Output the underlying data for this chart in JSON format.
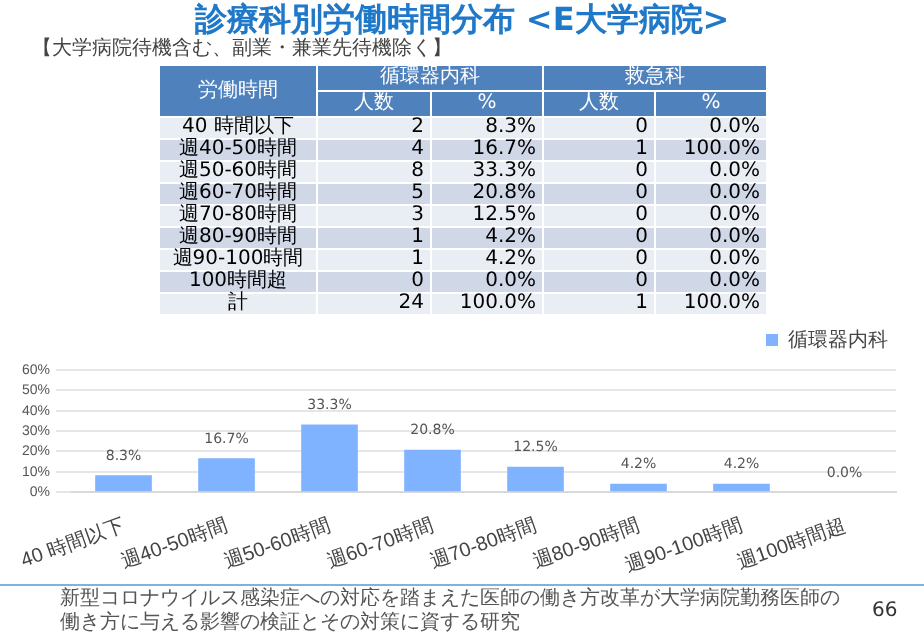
{
  "chart_data": [
    {
      "type": "heatmap",
      "title": "診療科別労働時間分布 <E大学病院>",
      "subtitle": "【大学病院待機含む、副業・兼業先待機除く】",
      "ylabel": "労働時間",
      "annotations": [
        "循環器内科",
        "救急科"
      ],
      "categories": [
        "人数",
        "%",
        "人数",
        "%"
      ],
      "y_categories": [
        "40 時間以下",
        "週40-50時間",
        "週50-60時間",
        "週60-70時間",
        "週70-80時間",
        "週80-90時間",
        "週90-100時間",
        "100時間超",
        "計"
      ],
      "cells": [
        [
          2,
          8.3,
          0,
          0
        ],
        [
          4,
          16.7,
          1,
          100
        ],
        [
          8,
          33.3,
          0,
          0
        ],
        [
          5,
          20.8,
          0,
          0
        ],
        [
          3,
          12.5,
          0,
          0
        ],
        [
          1,
          4.2,
          0,
          0
        ],
        [
          1,
          4.2,
          0,
          0
        ],
        [
          0,
          0,
          0,
          0
        ],
        [
          24,
          100,
          1,
          100
        ]
      ],
      "cell_labels": [
        [
          "2",
          "8.3%",
          "0",
          "0.0%"
        ],
        [
          "4",
          "16.7%",
          "1",
          "100.0%"
        ],
        [
          "8",
          "33.3%",
          "0",
          "0.0%"
        ],
        [
          "5",
          "20.8%",
          "0",
          "0.0%"
        ],
        [
          "3",
          "12.5%",
          "0",
          "0.0%"
        ],
        [
          "1",
          "4.2%",
          "0",
          "0.0%"
        ],
        [
          "1",
          "4.2%",
          "0",
          "0.0%"
        ],
        [
          "0",
          "0.0%",
          "0",
          "0.0%"
        ],
        [
          "24",
          "100.0%",
          "1",
          "100.0%"
        ]
      ]
    },
    {
      "type": "bar",
      "categories": [
        "40 時間以下",
        "週40-50時間",
        "週50-60時間",
        "週60-70時間",
        "週70-80時間",
        "週80-90時間",
        "週90-100時間",
        "週100時間超"
      ],
      "series": [
        {
          "name": "循環器内科",
          "color": "#80b3ff",
          "values": [
            8.3,
            16.7,
            33.3,
            20.8,
            12.5,
            4.2,
            4.2,
            0
          ],
          "value_labels": [
            "8.3%",
            "16.7%",
            "33.3%",
            "20.8%",
            "12.5%",
            "4.2%",
            "4.2%",
            "0.0%"
          ]
        }
      ],
      "ylim": [
        0,
        60
      ],
      "yticks": [
        {
          "value": 0,
          "label": "0%"
        },
        {
          "value": 10,
          "label": "10%"
        },
        {
          "value": 20,
          "label": "20%"
        },
        {
          "value": 30,
          "label": "30%"
        },
        {
          "value": 40,
          "label": "40%"
        },
        {
          "value": 50,
          "label": "50%"
        },
        {
          "value": 60,
          "label": "60%"
        }
      ],
      "grid": "y",
      "legend": "top right",
      "annotations": [
        "新型コロナウイルス感染症への対応を踏まえた医師の働き方改革が大学病院勤務医師の働き方に与える影響の検証とその対策に資する研究",
        "66"
      ]
    }
  ]
}
